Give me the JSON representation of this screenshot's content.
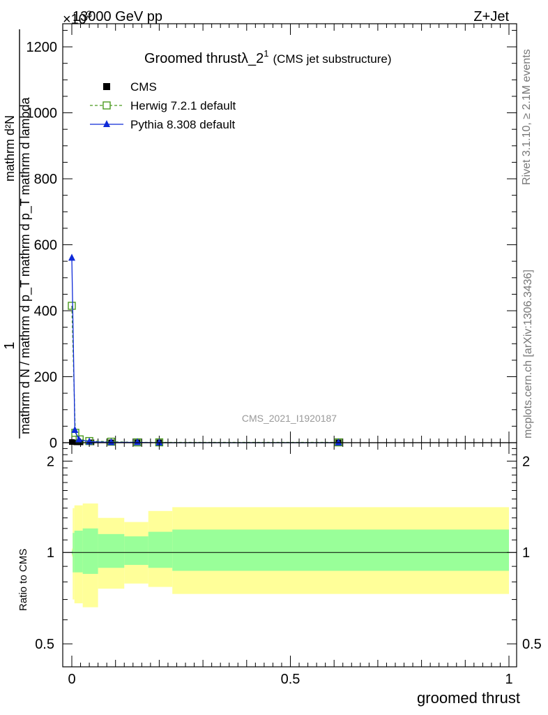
{
  "header": {
    "energy_label": "13000 GeV pp",
    "process_label": "Z+Jet",
    "scale_label": "×10",
    "scale_exponent": "3"
  },
  "side_labels": {
    "rivet": "Rivet 3.1.10, ≥ 2.1M events",
    "mcplots": "mcplots.cern.ch [arXiv:1306.3436]"
  },
  "chart_data": [
    {
      "type": "line",
      "title": "Groomed thrustλ_2",
      "title_sup": "1",
      "title_note": "(CMS jet substructure)",
      "watermark": "CMS_2021_I1920187",
      "xlabel": "",
      "ylabel_num": "1",
      "ylabel_den": "mathrm d N / mathrm d p_T mathrm d p_T mathrm d lambda",
      "ylabel_top": "mathrm d²N",
      "xlim": [
        0,
        1
      ],
      "ylim": [
        0,
        1270
      ],
      "yticks": [
        0,
        200,
        400,
        600,
        800,
        1000,
        1200
      ],
      "yticklabels": [
        "0",
        "200",
        "400",
        "600",
        "800",
        "1000",
        "1200"
      ],
      "log_y": false,
      "legend_position": "top-left",
      "series": [
        {
          "name": "CMS",
          "color": "#000000",
          "marker": "square-filled",
          "x": [
            0.0,
            0.01,
            0.02,
            0.045,
            0.09,
            0.15,
            0.2,
            0.61
          ],
          "y": [
            2,
            1,
            1,
            1,
            1,
            1,
            1,
            1
          ]
        },
        {
          "name": "Herwig 7.2.1 default",
          "color": "#4a9a1e",
          "marker": "square-open",
          "dashed": true,
          "x": [
            0.0,
            0.008,
            0.018,
            0.04,
            0.09,
            0.15,
            0.2,
            0.61
          ],
          "y": [
            415,
            30,
            10,
            5,
            3,
            1,
            1,
            1
          ]
        },
        {
          "name": "Pythia 8.308 default",
          "color": "#0f2bd8",
          "marker": "triangle-filled",
          "x": [
            0.0,
            0.007,
            0.016,
            0.04,
            0.09,
            0.15,
            0.2,
            0.61
          ],
          "y": [
            560,
            38,
            9,
            3,
            1,
            1,
            0,
            0
          ]
        }
      ]
    },
    {
      "type": "area",
      "ylabel": "Ratio to CMS",
      "xlabel": "groomed thrust",
      "xlim": [
        0,
        1
      ],
      "ylim": [
        0.42,
        2.3
      ],
      "yticks": [
        0.5,
        1,
        2
      ],
      "yticklabels": [
        "0.5",
        "1",
        "2"
      ],
      "xticks": [
        0,
        0.5,
        1
      ],
      "xticklabels": [
        "0",
        "0.5",
        "1"
      ],
      "log_y": true,
      "reference_line": 1,
      "bands": [
        {
          "name": "stat+syst",
          "color": "#ffff99",
          "edges": [
            0.0,
            0.002,
            0.006,
            0.025,
            0.06,
            0.12,
            0.175,
            0.23,
            1.0
          ],
          "low": [
            0.97,
            0.7,
            0.68,
            0.66,
            0.76,
            0.79,
            0.77,
            0.73
          ],
          "high": [
            1.03,
            1.4,
            1.43,
            1.45,
            1.3,
            1.26,
            1.37,
            1.41
          ]
        },
        {
          "name": "stat",
          "color": "#99ff99",
          "edges": [
            0.0,
            0.002,
            0.006,
            0.025,
            0.06,
            0.12,
            0.175,
            0.23,
            1.0
          ],
          "low": [
            0.985,
            0.86,
            0.86,
            0.85,
            0.89,
            0.91,
            0.89,
            0.87
          ],
          "high": [
            1.015,
            1.16,
            1.18,
            1.2,
            1.15,
            1.13,
            1.17,
            1.19
          ]
        }
      ]
    }
  ]
}
